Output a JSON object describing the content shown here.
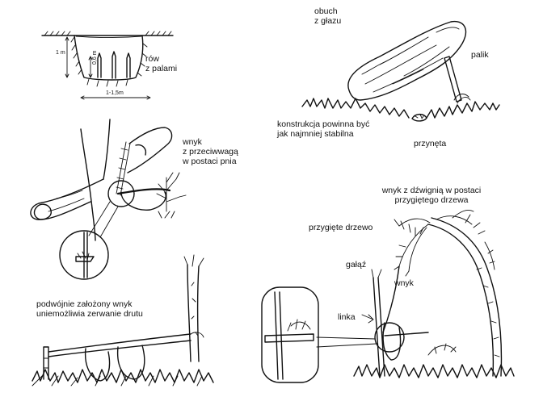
{
  "pit_trap": {
    "label": "rów\nz palami",
    "depth_label": "1 m",
    "stake_label": "0,6 m",
    "width_label": "1-1,5m"
  },
  "deadfall": {
    "rock_label": "obuch\nz głazu",
    "stake_label": "palik",
    "construction_label": "konstrukcja powinna być\njak najmniej stabilna",
    "bait_label": "przynęta"
  },
  "counterweight_snare": {
    "label": "wnyk\nz przeciwwagą\nw postaci pnia"
  },
  "double_snare": {
    "label": "podwójnie założony wnyk\nuniemożliwia zerwanie drutu"
  },
  "lever_snare": {
    "title": "wnyk z dźwignią w postaci\nprzygiętego drzewa",
    "bent_tree_label": "przygięte drzewo",
    "branch_label": "gałąź",
    "snare_label": "wnyk",
    "line_label": "linka"
  }
}
